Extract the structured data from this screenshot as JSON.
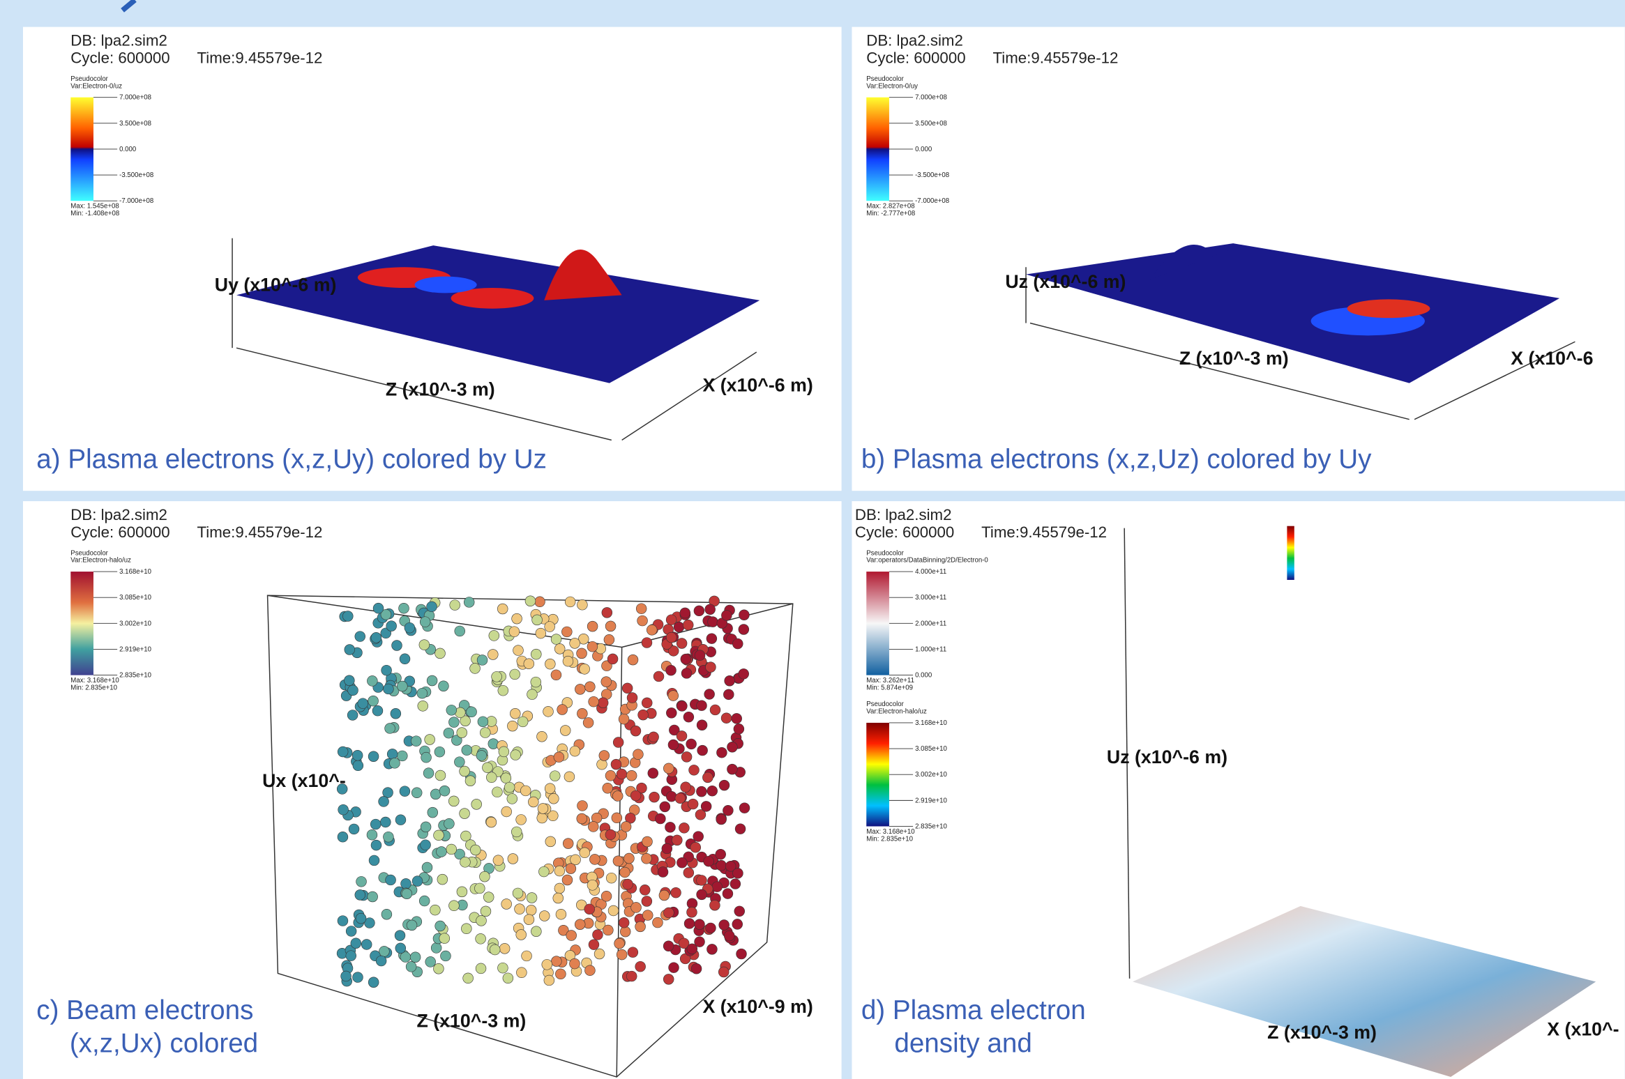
{
  "panels": [
    {
      "db": "DB: lpa2.sim2",
      "cycle": "Cycle: 600000",
      "time": "Time:9.45579e-12",
      "legends": [
        {
          "plot": "Pseudocolor",
          "var": "Var:Electron-0/uz",
          "ticks": [
            "7.000e+08",
            "3.500e+08",
            "0.000",
            "-3.500e+08",
            "-7.000e+08"
          ],
          "max": "Max: 1.545e+08",
          "min": "Min: -1.408e+08"
        }
      ],
      "axes": [
        "Uy (x10^-6 m)",
        "Z (x10^-3 m)",
        "X (x10^-6 m)"
      ],
      "caption": [
        "a) Plasma electrons (x,z,Uy) colored by Uz"
      ]
    },
    {
      "db": "DB: lpa2.sim2",
      "cycle": "Cycle: 600000",
      "time": "Time:9.45579e-12",
      "legends": [
        {
          "plot": "Pseudocolor",
          "var": "Var:Electron-0/uy",
          "ticks": [
            "7.000e+08",
            "3.500e+08",
            "0.000",
            "-3.500e+08",
            "-7.000e+08"
          ],
          "max": "Max: 2.827e+08",
          "min": "Min: -2.777e+08"
        }
      ],
      "axes": [
        "Uz (x10^-6 m)",
        "Z (x10^-3 m)",
        "X (x10^-6"
      ],
      "caption": [
        "b) Plasma electrons (x,z,Uz) colored by Uy"
      ]
    },
    {
      "db": "DB: lpa2.sim2",
      "cycle": "Cycle: 600000",
      "time": "Time:9.45579e-12",
      "legends": [
        {
          "plot": "Pseudocolor",
          "var": "Var:Electron-halo/uz",
          "ticks": [
            "3.168e+10",
            "3.085e+10",
            "3.002e+10",
            "2.919e+10",
            "2.835e+10"
          ],
          "max": "Max: 3.168e+10",
          "min": "Min: 2.835e+10"
        }
      ],
      "axes": [
        "Ux (x10^-",
        "Z (x10^-3 m)",
        "X (x10^-9 m)"
      ],
      "caption": [
        "c) Beam electrons",
        "(x,z,Ux) colored"
      ]
    },
    {
      "db": "DB: lpa2.sim2",
      "cycle": "Cycle: 600000",
      "time": "Time:9.45579e-12",
      "legends": [
        {
          "plot": "Pseudocolor",
          "var": "Var:operators/DataBinning/2D/Electron-0",
          "ticks": [
            "4.000e+11",
            "3.000e+11",
            "2.000e+11",
            "1.000e+11",
            "0.000"
          ],
          "max": "Max: 3.262e+11",
          "min": "Min: 5.874e+09"
        },
        {
          "plot": "Pseudocolor",
          "var": "Var:Electron-halo/uz",
          "ticks": [
            "3.168e+10",
            "3.085e+10",
            "3.002e+10",
            "2.919e+10",
            "2.835e+10"
          ],
          "max": "Max: 3.168e+10",
          "min": "Min: 2.835e+10"
        }
      ],
      "axes": [
        "Uz (x10^-6 m)",
        "Z (x10^-3 m)",
        "X (x10^-"
      ],
      "caption": [
        "d) Plasma electron",
        "density and"
      ]
    }
  ]
}
